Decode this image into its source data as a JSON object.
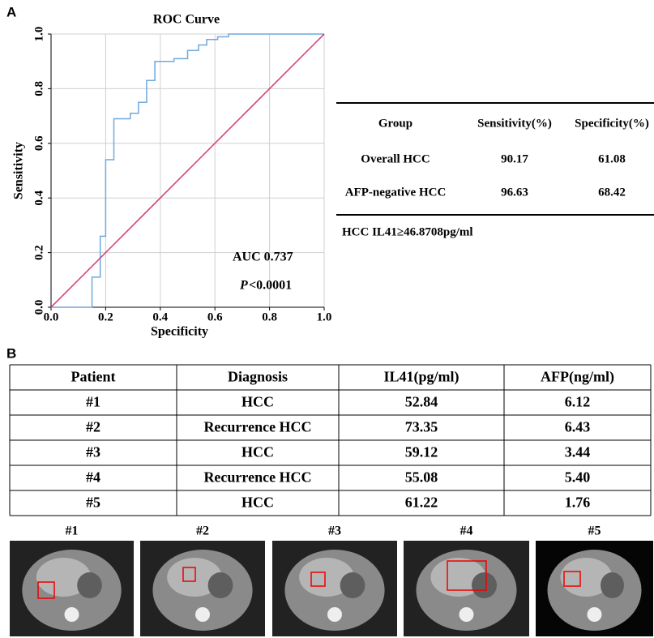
{
  "panel_labels": [
    "A",
    "B"
  ],
  "chart_data": {
    "type": "line",
    "title": "ROC Curve",
    "x_label": "Specificity",
    "y_label": "Sensitivity",
    "xlim": [
      0,
      1
    ],
    "ylim": [
      0,
      1
    ],
    "xticks": [
      {
        "value": 0,
        "label": "0.0"
      },
      {
        "value": 0.2,
        "label": "0.2"
      },
      {
        "value": 0.4,
        "label": "0.4"
      },
      {
        "value": 0.6,
        "label": "0.6"
      },
      {
        "value": 0.8,
        "label": "0.8"
      },
      {
        "value": 1,
        "label": "1.0"
      }
    ],
    "yticks": [
      {
        "value": 0,
        "label": "0.0"
      },
      {
        "value": 0.2,
        "label": "0.2"
      },
      {
        "value": 0.4,
        "label": "0.4"
      },
      {
        "value": 0.6,
        "label": "0.6"
      },
      {
        "value": 0.8,
        "label": "0.8"
      },
      {
        "value": 1,
        "label": "1.0"
      }
    ],
    "grid": true,
    "series": [
      {
        "color": "#6fa8dc",
        "x": [
          0,
          0.15,
          0.15,
          0.18,
          0.18,
          0.2,
          0.2,
          0.23,
          0.23,
          0.29,
          0.29,
          0.32,
          0.32,
          0.35,
          0.35,
          0.38,
          0.38,
          0.45,
          0.45,
          0.5,
          0.5,
          0.54,
          0.54,
          0.57,
          0.57,
          0.61,
          0.61,
          0.65,
          0.65,
          1.0
        ],
        "values": [
          0,
          0,
          0.11,
          0.11,
          0.26,
          0.26,
          0.54,
          0.54,
          0.69,
          0.69,
          0.71,
          0.71,
          0.75,
          0.75,
          0.83,
          0.83,
          0.9,
          0.9,
          0.91,
          0.91,
          0.94,
          0.94,
          0.96,
          0.96,
          0.98,
          0.98,
          0.99,
          0.99,
          1.0,
          1.0
        ]
      },
      {
        "color": "#d6336c",
        "x": [
          0,
          1
        ],
        "values": [
          0,
          1
        ]
      }
    ],
    "annotations": {
      "auc": "AUC 0.737",
      "p_symbol": "P",
      "p_value": "<0.0001"
    }
  },
  "summary_table": {
    "header": [
      "Group",
      "Sensitivity(%)",
      "Specificity(%)"
    ],
    "rows": [
      [
        "Overall HCC",
        "90.17",
        "61.08"
      ],
      [
        "AFP-negative HCC",
        "96.63",
        "68.42"
      ]
    ],
    "note": "HCC IL41≥46.8708pg/ml"
  },
  "patient_table": {
    "header": [
      "Patient",
      "Diagnosis",
      "IL41(pg/ml)",
      "AFP(ng/ml)"
    ],
    "rows": [
      [
        "#1",
        "HCC",
        "52.84",
        "6.12"
      ],
      [
        "#2",
        "Recurrence HCC",
        "73.35",
        "6.43"
      ],
      [
        "#3",
        "HCC",
        "59.12",
        "3.44"
      ],
      [
        "#4",
        "Recurrence HCC",
        "55.08",
        "5.40"
      ],
      [
        "#5",
        "HCC",
        "61.22",
        "1.76"
      ]
    ]
  },
  "image_labels": [
    "#1",
    "#2",
    "#3",
    "#4",
    "#5"
  ]
}
